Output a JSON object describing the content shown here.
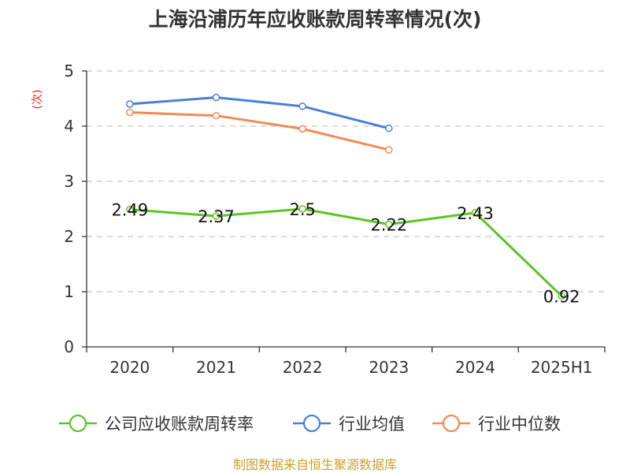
{
  "chart_data": {
    "type": "line",
    "title": "上海沿浦历年应收账款周转率情况(次)",
    "ylabel": "(次)",
    "xlabel": "",
    "categories": [
      "2020",
      "2021",
      "2022",
      "2023",
      "2024",
      "2025H1"
    ],
    "ylim": [
      0,
      5
    ],
    "yticks": [
      0,
      1,
      2,
      3,
      4,
      5
    ],
    "grid": true,
    "legend_position": "bottom",
    "series": [
      {
        "name": "公司应收账款周转率",
        "color": "#5cc424",
        "values": [
          2.49,
          2.37,
          2.5,
          2.22,
          2.43,
          0.92
        ],
        "labels": [
          "2.49",
          "2.37",
          "2.5",
          "2.22",
          "2.43",
          "0.92"
        ],
        "show_labels": true
      },
      {
        "name": "行业均值",
        "color": "#4a7fd8",
        "values": [
          4.4,
          4.52,
          4.36,
          3.96,
          null,
          null
        ],
        "show_labels": false
      },
      {
        "name": "行业中位数",
        "color": "#f48a50",
        "values": [
          4.25,
          4.19,
          3.95,
          3.57,
          null,
          null
        ],
        "show_labels": false
      }
    ]
  },
  "footer": {
    "source": "制图数据来自恒生聚源数据库"
  }
}
